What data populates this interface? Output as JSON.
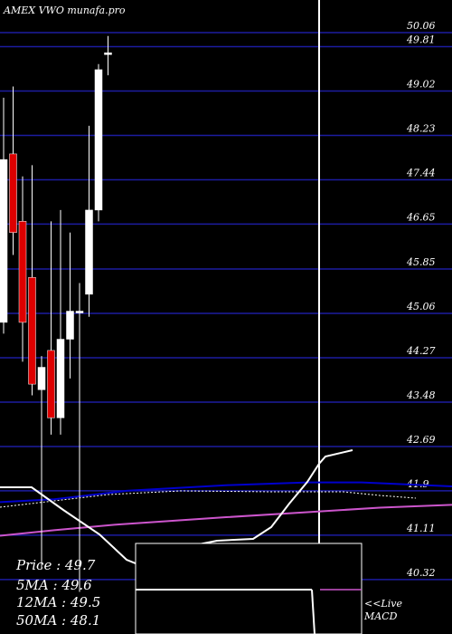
{
  "title": "AMEX VWO munafa.pro",
  "readouts": {
    "price": "Price  : 49.7",
    "ma5": "5MA : 49.6",
    "ma12": "12MA : 49.5",
    "ma50": "50MA : 48.1"
  },
  "macd_label_1": "<<Live",
  "macd_label_2": "MACD",
  "colors": {
    "background": "#000000",
    "up_candle": "#ffffff",
    "down_candle": "#dd0000",
    "grid": "#1c1ca0",
    "ma_blue": "#0000cc",
    "ma_magenta": "#cc55cc",
    "line_white": "#ffffff"
  },
  "chart_data": {
    "type": "candlestick",
    "ylim": [
      39.9,
      50.6
    ],
    "y_ticks": [
      "50.06",
      "49.81",
      "49.02",
      "48.23",
      "47.44",
      "46.65",
      "45.85",
      "45.06",
      "44.27",
      "43.48",
      "42.69",
      "41.9",
      "41.11",
      "40.32"
    ],
    "candles": [
      {
        "open": 44.9,
        "close": 47.8,
        "high": 48.9,
        "low": 44.7
      },
      {
        "open": 47.9,
        "close": 46.5,
        "high": 49.1,
        "low": 46.1
      },
      {
        "open": 46.7,
        "close": 44.9,
        "high": 47.5,
        "low": 44.2
      },
      {
        "open": 45.7,
        "close": 43.8,
        "high": 47.7,
        "low": 43.6
      },
      {
        "open": 43.7,
        "close": 44.1,
        "high": 44.3,
        "low": 40.5
      },
      {
        "open": 44.4,
        "close": 43.2,
        "high": 46.7,
        "low": 42.9
      },
      {
        "open": 43.2,
        "close": 44.6,
        "high": 46.9,
        "low": 42.9
      },
      {
        "open": 44.6,
        "close": 45.1,
        "high": 46.5,
        "low": 43.9
      },
      {
        "open": 45.1,
        "close": 45.1,
        "high": 45.6,
        "low": 40.1
      },
      {
        "open": 45.4,
        "close": 46.9,
        "high": 48.4,
        "low": 45.0
      },
      {
        "open": 46.9,
        "close": 49.4,
        "high": 49.5,
        "low": 46.7
      },
      {
        "open": 49.7,
        "close": 49.7,
        "high": 50.0,
        "low": 49.3
      }
    ],
    "ma_series": [
      {
        "values_x": [
          0,
          60,
          140,
          250,
          340,
          400,
          500
        ],
        "values_y": [
          41.7,
          41.75,
          41.9,
          42.0,
          42.05,
          42.05,
          41.98
        ]
      },
      {
        "values_x": [
          0,
          60,
          130,
          250,
          340,
          420,
          500
        ],
        "values_y": [
          41.1,
          41.2,
          41.3,
          41.43,
          41.52,
          41.6,
          41.65
        ]
      }
    ]
  }
}
